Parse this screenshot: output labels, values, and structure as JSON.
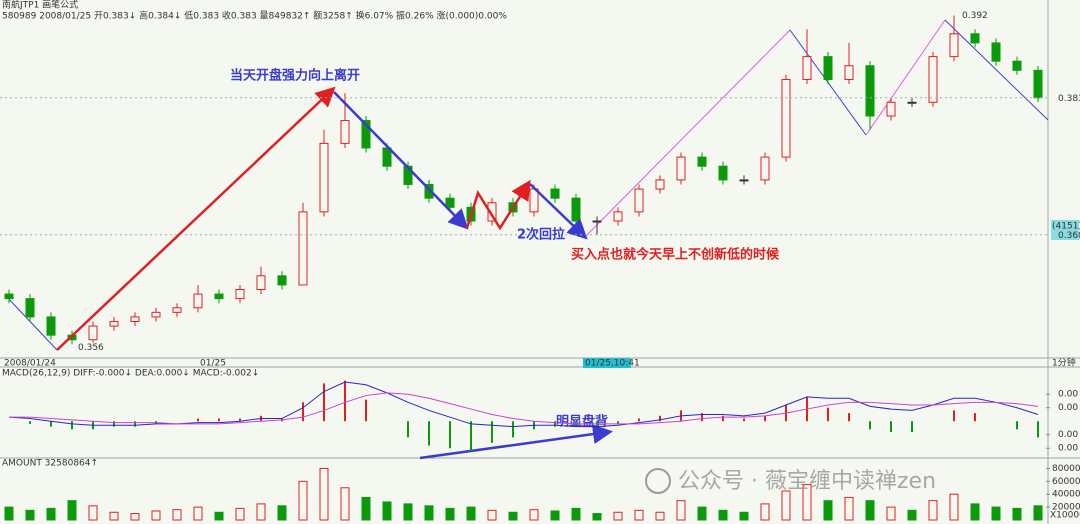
{
  "chart_data": {
    "type": "candlestick",
    "title": "南航JTP1 画笔公式",
    "info": "580989 2008/01/25 开0.383↓ 高0.384↓ 低0.383 收0.383 量849832↑ 额3258↑ 换6.07% 振0.26% 涨(0.000)0.00%",
    "x_labels": [
      "2008/01/24",
      "01/25",
      "01/25,10:41",
      "1分钟"
    ],
    "cursor_label": "(4151)",
    "up_color": "#e02020",
    "down_color": "#0a9a0a",
    "ylim": [
      0.3545,
      0.3937
    ],
    "yticks": [
      0.383,
      0.368
    ],
    "candles": [
      [
        0.3615,
        0.362,
        0.3605,
        0.361
      ],
      [
        0.361,
        0.3615,
        0.3585,
        0.359
      ],
      [
        0.359,
        0.3595,
        0.3565,
        0.357
      ],
      [
        0.357,
        0.3575,
        0.356,
        0.3565
      ],
      [
        0.3565,
        0.3585,
        0.3562,
        0.358
      ],
      [
        0.358,
        0.359,
        0.3575,
        0.3585
      ],
      [
        0.3585,
        0.3595,
        0.358,
        0.359
      ],
      [
        0.359,
        0.36,
        0.3585,
        0.3595
      ],
      [
        0.3595,
        0.3605,
        0.359,
        0.36
      ],
      [
        0.36,
        0.3625,
        0.3595,
        0.3615
      ],
      [
        0.3615,
        0.362,
        0.3605,
        0.361
      ],
      [
        0.361,
        0.3625,
        0.3605,
        0.362
      ],
      [
        0.362,
        0.3645,
        0.3615,
        0.3635
      ],
      [
        0.3635,
        0.364,
        0.362,
        0.3625
      ],
      [
        0.3625,
        0.3715,
        0.3625,
        0.3705
      ],
      [
        0.3705,
        0.3795,
        0.37,
        0.378
      ],
      [
        0.378,
        0.3835,
        0.3775,
        0.3805
      ],
      [
        0.3805,
        0.381,
        0.377,
        0.3775
      ],
      [
        0.3775,
        0.378,
        0.375,
        0.3755
      ],
      [
        0.3755,
        0.376,
        0.373,
        0.3735
      ],
      [
        0.3735,
        0.374,
        0.3715,
        0.372
      ],
      [
        0.372,
        0.3725,
        0.3705,
        0.371
      ],
      [
        0.371,
        0.3715,
        0.369,
        0.3695
      ],
      [
        0.3695,
        0.372,
        0.369,
        0.3715
      ],
      [
        0.3715,
        0.372,
        0.37,
        0.3705
      ],
      [
        0.3705,
        0.3735,
        0.37,
        0.373
      ],
      [
        0.373,
        0.3735,
        0.3715,
        0.372
      ],
      [
        0.372,
        0.3725,
        0.369,
        0.3695
      ],
      [
        0.3695,
        0.37,
        0.368,
        0.3695
      ],
      [
        0.3695,
        0.371,
        0.369,
        0.3705
      ],
      [
        0.3705,
        0.3735,
        0.37,
        0.373
      ],
      [
        0.373,
        0.3745,
        0.3725,
        0.374
      ],
      [
        0.374,
        0.377,
        0.3735,
        0.3765
      ],
      [
        0.3765,
        0.377,
        0.375,
        0.3755
      ],
      [
        0.3755,
        0.376,
        0.3735,
        0.374
      ],
      [
        0.374,
        0.3745,
        0.3735,
        0.374
      ],
      [
        0.374,
        0.377,
        0.3735,
        0.3765
      ],
      [
        0.3765,
        0.3855,
        0.376,
        0.385
      ],
      [
        0.385,
        0.3905,
        0.3845,
        0.3875
      ],
      [
        0.3875,
        0.388,
        0.3845,
        0.385
      ],
      [
        0.385,
        0.389,
        0.3845,
        0.3865
      ],
      [
        0.3865,
        0.387,
        0.3795,
        0.381
      ],
      [
        0.381,
        0.383,
        0.3805,
        0.3825
      ],
      [
        0.3825,
        0.383,
        0.382,
        0.3825
      ],
      [
        0.3825,
        0.388,
        0.382,
        0.3875
      ],
      [
        0.3875,
        0.392,
        0.387,
        0.39
      ],
      [
        0.39,
        0.3905,
        0.3885,
        0.389
      ],
      [
        0.389,
        0.3895,
        0.3865,
        0.387
      ],
      [
        0.387,
        0.3875,
        0.3855,
        0.386
      ],
      [
        0.386,
        0.3865,
        0.3825,
        0.383
      ]
    ],
    "annotations": [
      {
        "text": "当天开盘强力向上离开",
        "color": "#3b3bd0"
      },
      {
        "text": "2次回拉",
        "color": "#3b3bd0"
      },
      {
        "text": "买入点也就今天早上不创新低的时候",
        "color": "#e02020"
      },
      {
        "text": "明显盘背",
        "color": "#3b3bd0"
      }
    ],
    "macd": {
      "label": "MACD(26,12,9) DIFF:-0.000↓ DEA:0.000↓ MACD:-0.002↓",
      "ylim": [
        -0.0025,
        0.0032
      ],
      "yticks": [
        {
          "value": 0.002,
          "label": "0.00"
        },
        {
          "value": 0.001,
          "label": "0.00"
        },
        {
          "value": -0.001,
          "label": "0.00"
        },
        {
          "value": -0.002,
          "label": "0.00"
        }
      ],
      "diff_color": "#2626c8",
      "dea_color": "#d040d0",
      "diff": [
        0.0003,
        0.0002,
        0,
        -0.0002,
        -0.0003,
        -0.0003,
        -0.0003,
        -0.0002,
        -0.0002,
        -0.0001,
        -0.0001,
        0,
        0.0002,
        0.0002,
        0.001,
        0.0022,
        0.0029,
        0.0027,
        0.0021,
        0.0014,
        0.0008,
        0.0003,
        -0.0002,
        -0.0003,
        -0.0004,
        -0.0003,
        -0.0003,
        -0.0004,
        -0.0004,
        -0.0003,
        -0.0001,
        0.0001,
        0.0004,
        0.0005,
        0.0005,
        0.0004,
        0.0006,
        0.0012,
        0.0018,
        0.0017,
        0.0017,
        0.0011,
        0.0009,
        0.0008,
        0.0012,
        0.0017,
        0.0017,
        0.0014,
        0.001,
        0.0005
      ],
      "dea": [
        0.0003,
        0.0003,
        0.0002,
        0.0001,
        0,
        -0.0001,
        -0.0001,
        -0.0001,
        -0.0002,
        -0.0002,
        -0.0002,
        -0.0001,
        0,
        0.0001,
        0.0003,
        0.0008,
        0.0014,
        0.0019,
        0.0021,
        0.002,
        0.0017,
        0.0013,
        0.0009,
        0.0005,
        0.0002,
        0,
        -0.0001,
        -0.0002,
        -0.0002,
        -0.0002,
        -0.0002,
        -0.0001,
        0,
        0.0002,
        0.0003,
        0.0003,
        0.0004,
        0.0006,
        0.0009,
        0.0012,
        0.0014,
        0.0014,
        0.0013,
        0.0012,
        0.0012,
        0.0013,
        0.0014,
        0.0014,
        0.0013,
        0.0011
      ],
      "hist": [
        0,
        -0.0002,
        -0.0004,
        -0.0006,
        -0.0006,
        -0.0004,
        -0.0004,
        -0.0002,
        0,
        0.0002,
        0.0002,
        0.0002,
        0.0004,
        0.0002,
        0.0014,
        0.0028,
        0.003,
        0.0016,
        0,
        -0.0012,
        -0.0018,
        -0.002,
        -0.0022,
        -0.0016,
        -0.0012,
        -0.0006,
        -0.0004,
        -0.0004,
        -0.0004,
        -0.0002,
        0.0002,
        0.0004,
        0.0008,
        0.0006,
        0.0004,
        0.0002,
        0.0004,
        0.0012,
        0.0018,
        0.001,
        0.0006,
        -0.0006,
        -0.0008,
        -0.0008,
        0,
        0.0008,
        0.0006,
        0,
        -0.0006,
        -0.0012
      ]
    },
    "volume": {
      "label": "AMOUNT 32580864↑",
      "unit": "X10000",
      "ylim": [
        0,
        90000
      ],
      "yticks": [
        80000,
        60000,
        40000,
        20000
      ],
      "values": [
        20000,
        15000,
        18000,
        30000,
        22000,
        12000,
        10000,
        14000,
        16000,
        20000,
        12000,
        18000,
        25000,
        22000,
        60000,
        80000,
        50000,
        35000,
        28000,
        25000,
        22000,
        18000,
        20000,
        15000,
        12000,
        16000,
        14000,
        18000,
        10000,
        12000,
        15000,
        12000,
        30000,
        20000,
        15000,
        12000,
        25000,
        45000,
        55000,
        30000,
        35000,
        30000,
        20000,
        15000,
        30000,
        40000,
        25000,
        20000,
        18000,
        22000
      ]
    },
    "watermark": "公众号 · 薇宝缠中读禅zen"
  }
}
